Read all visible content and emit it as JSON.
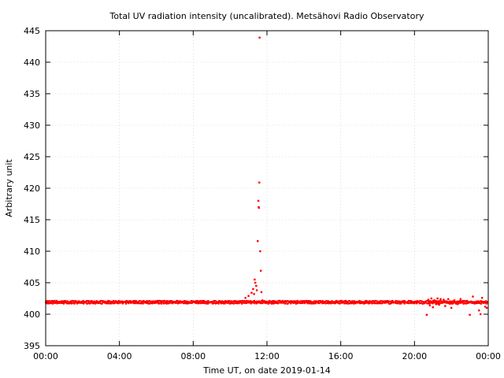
{
  "chart_data": {
    "type": "scatter",
    "title": "Total UV radiation intensity (uncalibrated). Metsähovi Radio Observatory",
    "xlabel": "Time UT, on date 2019-01-14",
    "ylabel": "Arbitrary unit",
    "xlim": [
      "00:00",
      "24:00"
    ],
    "ylim": [
      395,
      445
    ],
    "grid": true,
    "x_ticks": [
      "00:00",
      "04:00",
      "08:00",
      "12:00",
      "16:00",
      "20:00",
      "00:00"
    ],
    "y_ticks": [
      395,
      400,
      405,
      410,
      415,
      420,
      425,
      430,
      435,
      440,
      445
    ],
    "marker_color": "#ff0000",
    "series": [
      {
        "baseline": {
          "x_range": [
            "00:00",
            "24:00"
          ],
          "y": 401.9,
          "spread": 0.25
        },
        "points": [
          [
            "10:50",
            402.6
          ],
          [
            "11:00",
            402.9
          ],
          [
            "11:10",
            403.4
          ],
          [
            "11:15",
            404.0
          ],
          [
            "11:18",
            403.2
          ],
          [
            "11:20",
            405.5
          ],
          [
            "11:22",
            405.0
          ],
          [
            "11:25",
            404.5
          ],
          [
            "11:27",
            403.8
          ],
          [
            "11:30",
            411.6
          ],
          [
            "11:32",
            418.0
          ],
          [
            "11:33",
            417.0
          ],
          [
            "11:34",
            416.9
          ],
          [
            "11:35",
            420.9
          ],
          [
            "11:36",
            443.9
          ],
          [
            "11:38",
            410.0
          ],
          [
            "11:40",
            406.9
          ],
          [
            "11:42",
            403.5
          ],
          [
            "11:45",
            402.2
          ],
          [
            "20:40",
            399.9
          ],
          [
            "20:45",
            402.3
          ],
          [
            "20:50",
            401.4
          ],
          [
            "20:55",
            402.5
          ],
          [
            "21:00",
            401.1
          ],
          [
            "21:05",
            402.2
          ],
          [
            "21:10",
            401.6
          ],
          [
            "21:15",
            402.5
          ],
          [
            "21:20",
            401.5
          ],
          [
            "21:25",
            402.4
          ],
          [
            "21:30",
            401.8
          ],
          [
            "21:35",
            402.3
          ],
          [
            "21:40",
            401.3
          ],
          [
            "21:50",
            402.4
          ],
          [
            "22:00",
            401.0
          ],
          [
            "22:05",
            401.7
          ],
          [
            "22:10",
            402.2
          ],
          [
            "22:20",
            401.6
          ],
          [
            "22:30",
            402.4
          ],
          [
            "22:40",
            401.7
          ],
          [
            "22:50",
            402.1
          ],
          [
            "23:00",
            399.9
          ],
          [
            "23:10",
            402.8
          ],
          [
            "23:20",
            401.8
          ],
          [
            "23:30",
            400.6
          ],
          [
            "23:35",
            400.0
          ],
          [
            "23:40",
            402.6
          ],
          [
            "23:45",
            401.8
          ],
          [
            "23:50",
            401.2
          ],
          [
            "23:55",
            401.0
          ]
        ]
      }
    ]
  }
}
